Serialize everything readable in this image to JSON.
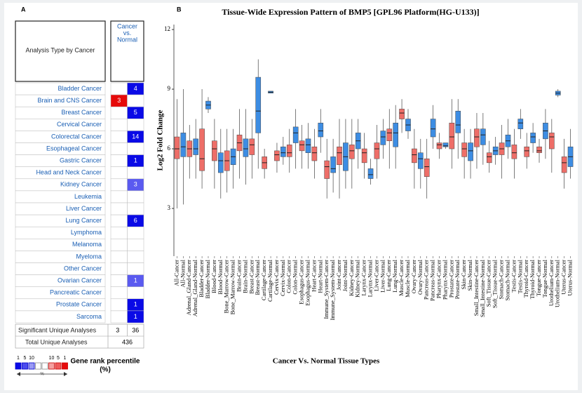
{
  "panel_a": {
    "label": "A",
    "header": "Analysis Type by Cancer",
    "column_header": [
      "Cancer",
      "vs.",
      "Normal"
    ],
    "rows": [
      {
        "name": "Bladder Cancer",
        "up": null,
        "down": 4,
        "up_color": null,
        "down_color": "#0a0ae6"
      },
      {
        "name": "Brain and CNS Cancer",
        "up": 3,
        "down": null,
        "up_color": "#e60a0a",
        "down_color": null
      },
      {
        "name": "Breast Cancer",
        "up": null,
        "down": 5,
        "up_color": null,
        "down_color": "#0a0ae6"
      },
      {
        "name": "Cervical Cancer",
        "up": null,
        "down": null,
        "up_color": null,
        "down_color": null
      },
      {
        "name": "Colorectal Cancer",
        "up": null,
        "down": 14,
        "up_color": null,
        "down_color": "#0a0ae6"
      },
      {
        "name": "Esophageal Cancer",
        "up": null,
        "down": null,
        "up_color": null,
        "down_color": null
      },
      {
        "name": "Gastric Cancer",
        "up": null,
        "down": 1,
        "up_color": null,
        "down_color": "#0a0ae6"
      },
      {
        "name": "Head and Neck Cancer",
        "up": null,
        "down": null,
        "up_color": null,
        "down_color": null
      },
      {
        "name": "Kidney Cancer",
        "up": null,
        "down": 3,
        "up_color": null,
        "down_color": "#5a5af0"
      },
      {
        "name": "Leukemia",
        "up": null,
        "down": null,
        "up_color": null,
        "down_color": null
      },
      {
        "name": "Liver Cancer",
        "up": null,
        "down": null,
        "up_color": null,
        "down_color": null
      },
      {
        "name": "Lung Cancer",
        "up": null,
        "down": 6,
        "up_color": null,
        "down_color": "#0a0ae6"
      },
      {
        "name": "Lymphoma",
        "up": null,
        "down": null,
        "up_color": null,
        "down_color": null
      },
      {
        "name": "Melanoma",
        "up": null,
        "down": null,
        "up_color": null,
        "down_color": null
      },
      {
        "name": "Myeloma",
        "up": null,
        "down": null,
        "up_color": null,
        "down_color": null
      },
      {
        "name": "Other Cancer",
        "up": null,
        "down": null,
        "up_color": null,
        "down_color": null
      },
      {
        "name": "Ovarian Cancer",
        "up": null,
        "down": 1,
        "up_color": null,
        "down_color": "#5a5af0"
      },
      {
        "name": "Pancreatic Cancer",
        "up": null,
        "down": null,
        "up_color": null,
        "down_color": null
      },
      {
        "name": "Prostate Cancer",
        "up": null,
        "down": 1,
        "up_color": null,
        "down_color": "#0a0ae6"
      },
      {
        "name": "Sarcoma",
        "up": null,
        "down": 1,
        "up_color": null,
        "down_color": "#0a0ae6"
      }
    ],
    "significant": {
      "label": "Significant Unique Analyses",
      "up": 3,
      "down": 36
    },
    "total": {
      "label": "Total Unique Analyses",
      "value": 436
    },
    "legend": {
      "ticks": [
        "1",
        "5",
        "10",
        "10",
        "5",
        "1"
      ],
      "unit": "%",
      "colors": [
        "#0a0ae6",
        "#4a4aee",
        "#9a9af4",
        "#ffffff",
        "#ffffff",
        "#f4a0a0",
        "#ee5a5a",
        "#e60a0a"
      ],
      "title": [
        "Gene rank percentile",
        "(%)"
      ]
    }
  },
  "chart_data": {
    "type": "boxplot",
    "label": "B",
    "title": "Tissue-Wide Expression Pattern of BMP5 [GPL96 Platform(HG-U133)]",
    "x_label": "Cancer  Vs. Normal Tissue Types",
    "y_label": "Log2 Fold Change",
    "ylim": [
      0.6,
      12.25
    ],
    "yticks": [
      3,
      6,
      9,
      12
    ],
    "colors": [
      "#ee6e68",
      "#3d8de3"
    ],
    "categories": [
      "All-Cancer",
      "All-Normal",
      "Adrenal_Gland-Cancer",
      "Adrenal_Gland-Normal",
      "Bladder-Cancer",
      "Bladder-Normal",
      "Blood-Cancer",
      "Blood-Normal",
      "Bone_Marrow-Cancer",
      "Bone_Marrow-Normal",
      "Brain-Cancer",
      "Brain-Normal",
      "Breast-Cancer",
      "Breast-Normal",
      "Cartilage-Cancer",
      "Cartilage-Normal",
      "Cervix-Cancer",
      "Cervix-Normal",
      "Colon-Cancer",
      "Colon-Normal",
      "Esophagus-Cancer",
      "Esophagus-Normal",
      "Heart-Cancer",
      "Heart-Normal",
      "Immune_System-Cancer",
      "Immune_System-Normal",
      "Joint-Cancer",
      "Joint-Normal",
      "Kidney-Cancer",
      "Kidney-Normal",
      "Larynx-Cancer",
      "Larynx-Normal",
      "Liver-Cancer",
      "Liver-Normal",
      "Lung-Cancer",
      "Lung-Normal",
      "Muscle-Cancer",
      "Muscle-Normal",
      "Ovary-Cancer",
      "Ovary-Normal",
      "Pancreas-Cancer",
      "Pancreas-Normal",
      "Pharynx-Cancer",
      "Pharynx-Normal",
      "Prostate-Cancer",
      "Prostate-Normal",
      "Skin-Cancer",
      "Skin-Normal",
      "Small_Intestine-Cancer",
      "Small_Intestine-Normal",
      "Soft_Tissue-Cancer",
      "Soft_Tissue-Normal",
      "Stomach-Cancer",
      "Stomach-Normal",
      "Testis-Cancer",
      "Testis-Normal",
      "Thyroid-Cancer",
      "Thyroid-Normal",
      "Tongue-Cancer",
      "Tongue-Normal",
      "Urothelium-Cancer",
      "Urothelium-Normal",
      "Uterus-Cancer",
      "Uterus-Normal"
    ],
    "boxes": [
      [
        3.0,
        5.5,
        6.0,
        6.6,
        8.5
      ],
      [
        3.2,
        5.6,
        6.1,
        6.8,
        9.0
      ],
      [
        4.5,
        5.6,
        6.0,
        6.4,
        7.2
      ],
      [
        4.5,
        5.7,
        6.0,
        6.5,
        7.5
      ],
      [
        4.0,
        4.9,
        5.5,
        7.0,
        9.0
      ],
      [
        7.8,
        8.0,
        8.2,
        8.4,
        8.6
      ],
      [
        4.0,
        5.4,
        6.0,
        6.4,
        7.5
      ],
      [
        3.5,
        4.8,
        5.4,
        5.8,
        7.0
      ],
      [
        3.8,
        4.9,
        5.4,
        5.9,
        7.0
      ],
      [
        4.0,
        5.2,
        5.6,
        6.0,
        7.0
      ],
      [
        4.5,
        5.9,
        6.3,
        6.7,
        8.0
      ],
      [
        4.2,
        5.6,
        6.0,
        6.5,
        8.0
      ],
      [
        4.5,
        5.7,
        6.2,
        6.5,
        7.5
      ],
      [
        5.0,
        6.8,
        7.9,
        9.6,
        10.5
      ],
      [
        4.5,
        5.0,
        5.3,
        5.6,
        6.0
      ],
      [
        8.8,
        8.8,
        8.85,
        8.9,
        8.9
      ],
      [
        4.8,
        5.4,
        5.7,
        5.9,
        6.3
      ],
      [
        5.2,
        5.6,
        5.8,
        6.1,
        6.6
      ],
      [
        4.8,
        5.6,
        5.8,
        6.2,
        7.0
      ],
      [
        5.0,
        6.3,
        6.8,
        7.1,
        8.0
      ],
      [
        5.0,
        5.9,
        6.2,
        6.4,
        7.2
      ],
      [
        5.0,
        5.8,
        6.2,
        6.5,
        7.3
      ],
      [
        4.5,
        5.4,
        5.8,
        6.1,
        7.0
      ],
      [
        5.8,
        6.6,
        6.9,
        7.3,
        8.0
      ],
      [
        3.5,
        4.5,
        5.1,
        5.4,
        6.5
      ],
      [
        3.8,
        4.8,
        5.0,
        5.6,
        6.5
      ],
      [
        3.5,
        5.2,
        5.8,
        6.1,
        7.5
      ],
      [
        4.0,
        4.9,
        5.6,
        6.3,
        7.5
      ],
      [
        4.0,
        5.5,
        5.9,
        6.2,
        7.5
      ],
      [
        5.0,
        6.0,
        6.4,
        6.8,
        7.5
      ],
      [
        4.5,
        5.3,
        5.8,
        6.0,
        6.8
      ],
      [
        4.2,
        4.5,
        4.7,
        5.0,
        5.5
      ],
      [
        4.5,
        5.5,
        6.0,
        6.3,
        7.2
      ],
      [
        5.5,
        6.2,
        6.6,
        6.9,
        7.5
      ],
      [
        5.0,
        6.4,
        6.8,
        7.0,
        8.0
      ],
      [
        5.0,
        6.1,
        6.8,
        7.3,
        8.2
      ],
      [
        6.8,
        7.5,
        7.8,
        8.0,
        8.5
      ],
      [
        6.5,
        6.9,
        7.2,
        7.5,
        8.0
      ],
      [
        4.0,
        5.3,
        5.7,
        6.0,
        7.0
      ],
      [
        4.0,
        5.0,
        5.5,
        5.8,
        6.5
      ],
      [
        3.5,
        4.6,
        5.1,
        5.5,
        6.5
      ],
      [
        6.0,
        6.6,
        7.0,
        7.5,
        8.2
      ],
      [
        5.5,
        6.0,
        6.2,
        6.3,
        6.8
      ],
      [
        6.0,
        6.1,
        6.15,
        6.3,
        6.3
      ],
      [
        5.0,
        6.0,
        6.6,
        7.3,
        8.5
      ],
      [
        5.5,
        6.8,
        7.2,
        7.9,
        8.5
      ],
      [
        4.5,
        5.6,
        6.0,
        6.3,
        7.0
      ],
      [
        4.5,
        5.4,
        5.9,
        6.3,
        7.0
      ],
      [
        5.0,
        6.1,
        6.6,
        7.0,
        7.8
      ],
      [
        5.2,
        6.2,
        6.7,
        7.0,
        7.8
      ],
      [
        4.8,
        5.3,
        5.6,
        5.8,
        6.4
      ],
      [
        5.2,
        5.7,
        5.9,
        6.1,
        6.6
      ],
      [
        4.5,
        5.7,
        6.0,
        6.3,
        7.2
      ],
      [
        5.5,
        6.1,
        6.4,
        6.7,
        7.5
      ],
      [
        4.5,
        5.5,
        5.8,
        6.2,
        7.0
      ],
      [
        6.5,
        7.0,
        7.3,
        7.5,
        8.0
      ],
      [
        5.0,
        5.6,
        5.9,
        6.1,
        6.8
      ],
      [
        5.8,
        6.3,
        6.6,
        6.8,
        7.3
      ],
      [
        5.3,
        5.8,
        5.9,
        6.1,
        6.5
      ],
      [
        5.5,
        6.5,
        6.9,
        7.3,
        8.0
      ],
      [
        4.8,
        6.0,
        6.6,
        6.8,
        7.5
      ],
      [
        8.6,
        8.7,
        8.8,
        8.9,
        9.0
      ],
      [
        4.0,
        4.8,
        5.3,
        5.6,
        6.5
      ],
      [
        4.5,
        5.1,
        5.6,
        6.1,
        7.0
      ]
    ]
  }
}
